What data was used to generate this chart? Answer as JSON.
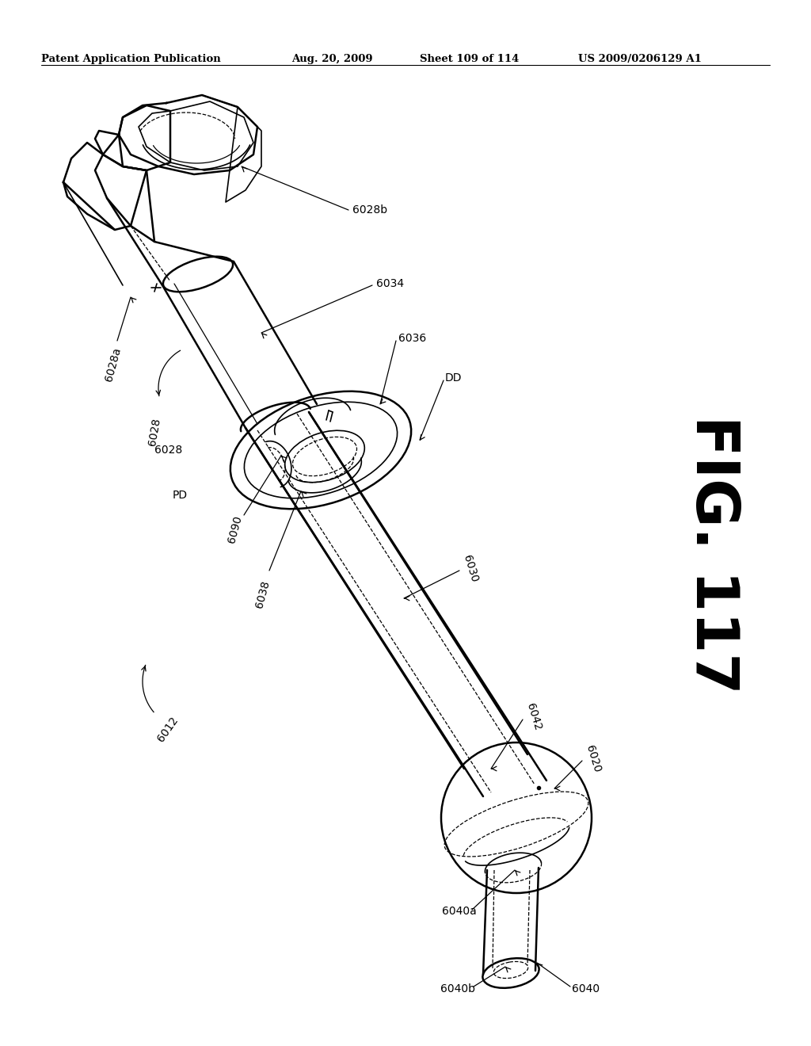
{
  "bg_color": "#ffffff",
  "line_color": "#000000",
  "header_text": "Patent Application Publication",
  "header_date": "Aug. 20, 2009",
  "header_sheet": "Sheet 109 of 114",
  "header_patent": "US 2009/0206129 A1",
  "fig_label": "FIG. 117",
  "figsize": [
    10.24,
    13.2
  ],
  "dpi": 100
}
